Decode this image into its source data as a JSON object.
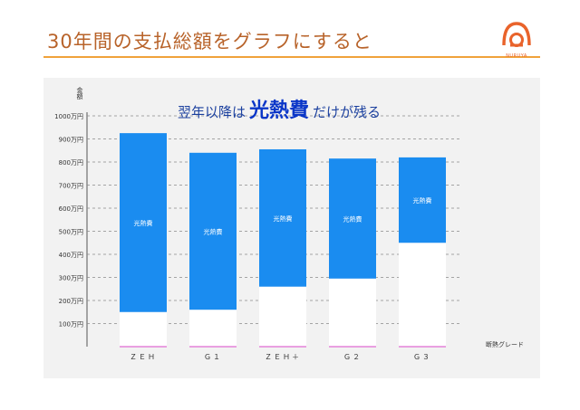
{
  "page": {
    "title": "30年間の支払総額をグラフにすると",
    "accent_color": "#f0a23a",
    "title_color": "#b8632a",
    "logo_text": "NURUYA"
  },
  "headline": {
    "before": "翌年以降は",
    "emphasis": "光熱費",
    "after": "だけが残る"
  },
  "chart_data": {
    "type": "bar",
    "subtype": "floating-stacked",
    "title": "",
    "xlabel": "断熱グレード",
    "ylabel": "金額",
    "categories": [
      "ZEH",
      "G1",
      "ZEH+",
      "G2",
      "G3"
    ],
    "xtick_labels": [
      "ＺＥＨ",
      "Ｇ１",
      "ＺＥＨ＋",
      "Ｇ２",
      "Ｇ３"
    ],
    "ylim": [
      0,
      1000
    ],
    "yticks": [
      100,
      200,
      300,
      400,
      500,
      600,
      700,
      800,
      900,
      1000
    ],
    "ytick_labels": [
      "100万円",
      "200万円",
      "300万円",
      "400万円",
      "500万円",
      "600万円",
      "700万円",
      "800万円",
      "900万円",
      "1000万円"
    ],
    "grid": true,
    "series": [
      {
        "name": "",
        "segment": "base",
        "values": [
          150,
          160,
          260,
          295,
          450
        ],
        "color": "#ffffff"
      },
      {
        "name": "光熱費",
        "segment": "top",
        "values": [
          775,
          680,
          595,
          520,
          370
        ],
        "color": "#1a8cf0"
      }
    ],
    "bar_labels": [
      "光熱費",
      "光熱費",
      "光熱費",
      "光熱費",
      "光熱費"
    ],
    "baseline_color": "#d946c8"
  }
}
